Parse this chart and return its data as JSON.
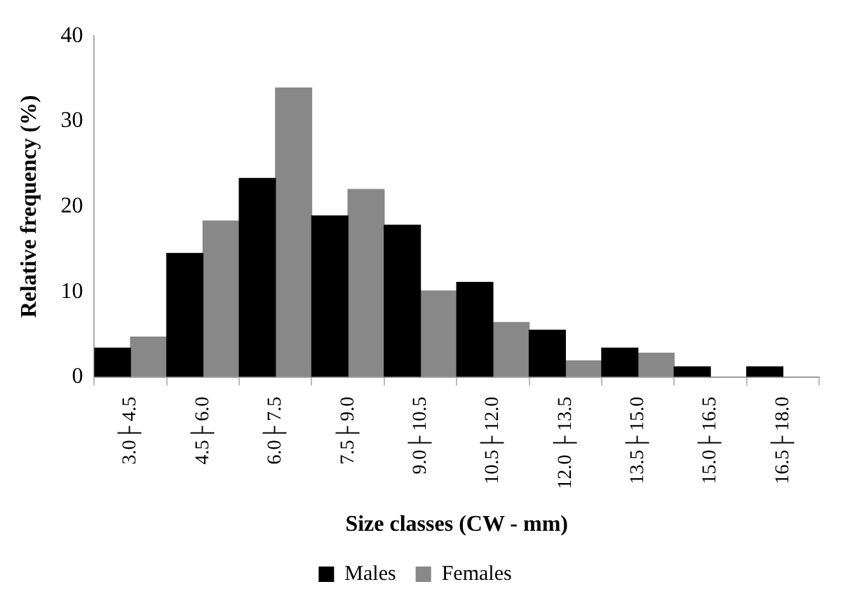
{
  "chart_data": {
    "type": "bar",
    "xlabel": "Size classes (CW - mm)",
    "ylabel": "Relative frequency (%)",
    "categories": [
      "3.0├ 4.5",
      "4.5├ 6.0",
      "6.0├ 7.5",
      "7.5├ 9.0",
      "9.0├ 10.5",
      "10.5├ 12.0",
      "12.0 ├ 13.5",
      "13.5├ 15.0",
      "15.0├ 16.5",
      "16.5├ 18.0"
    ],
    "series": [
      {
        "name": "Males",
        "color": "#000000",
        "values": [
          3.4,
          14.5,
          23.3,
          18.9,
          17.8,
          11.1,
          5.5,
          3.4,
          1.2,
          1.2
        ]
      },
      {
        "name": "Females",
        "color": "#888888",
        "values": [
          4.7,
          18.3,
          33.9,
          22.0,
          10.1,
          6.4,
          1.9,
          2.8,
          0,
          0
        ]
      }
    ],
    "ylim": [
      0,
      40
    ],
    "yticks": [
      0,
      10,
      20,
      30,
      40
    ],
    "grid": false,
    "legend": "bottom"
  }
}
